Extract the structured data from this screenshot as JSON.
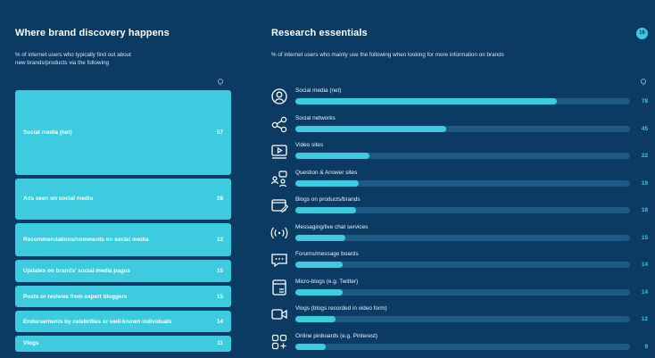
{
  "chart_data": [
    {
      "type": "bar",
      "title": "Where brand discovery happens",
      "subtitle": "% of internet users who typically find out about new brands/products via the following",
      "categories": [
        "Social media (net)",
        "Ads seen on social media",
        "Recommendations/comments on social media",
        "Updates on brands' social media pages",
        "Posts or reviews from expert bloggers",
        "Endorsements by celebrities or well-known individuals",
        "Vlogs"
      ],
      "values": [
        57,
        28,
        22,
        15,
        15,
        14,
        11
      ]
    },
    {
      "type": "bar",
      "title": "Research essentials",
      "subtitle": "% of internet users who mainly use the following when looking for more information on brands",
      "categories": [
        "Social media (net)",
        "Social networks",
        "Video sites",
        "Question & Answer sites",
        "Blogs on products/brands",
        "Messaging/live chat services",
        "Forums/message boards",
        "Micro-blogs (e.g. Twitter)",
        "Vlogs (blogs recorded in video form)",
        "Online pinboards (e.g. Pinterest)"
      ],
      "values": [
        78,
        45,
        22,
        19,
        18,
        15,
        14,
        14,
        12,
        9
      ],
      "xlim": [
        0,
        100
      ]
    }
  ],
  "left": {
    "title": "Where brand discovery happens",
    "subtitle_line1": "% of internet users who typically find out about",
    "subtitle_line2": "new brands/products via the following"
  },
  "right": {
    "title": "Research essentials",
    "subtitle": "% of internet users who mainly use the following when looking for more information on brands",
    "badge": "16"
  },
  "icons": {
    "left_pin": "map-pin-icon",
    "right_pin": "map-pin-icon",
    "rows": [
      "person-circle-icon",
      "share-network-icon",
      "video-player-icon",
      "people-question-icon",
      "browser-blog-icon",
      "broadcast-waves-icon",
      "chat-bubble-icon",
      "micro-blog-window-icon",
      "video-camera-icon",
      "pinboard-grid-icon"
    ]
  },
  "colors": {
    "background": "#0b3a63",
    "bar": "#3dcbdf",
    "track": "#1d5a84"
  }
}
